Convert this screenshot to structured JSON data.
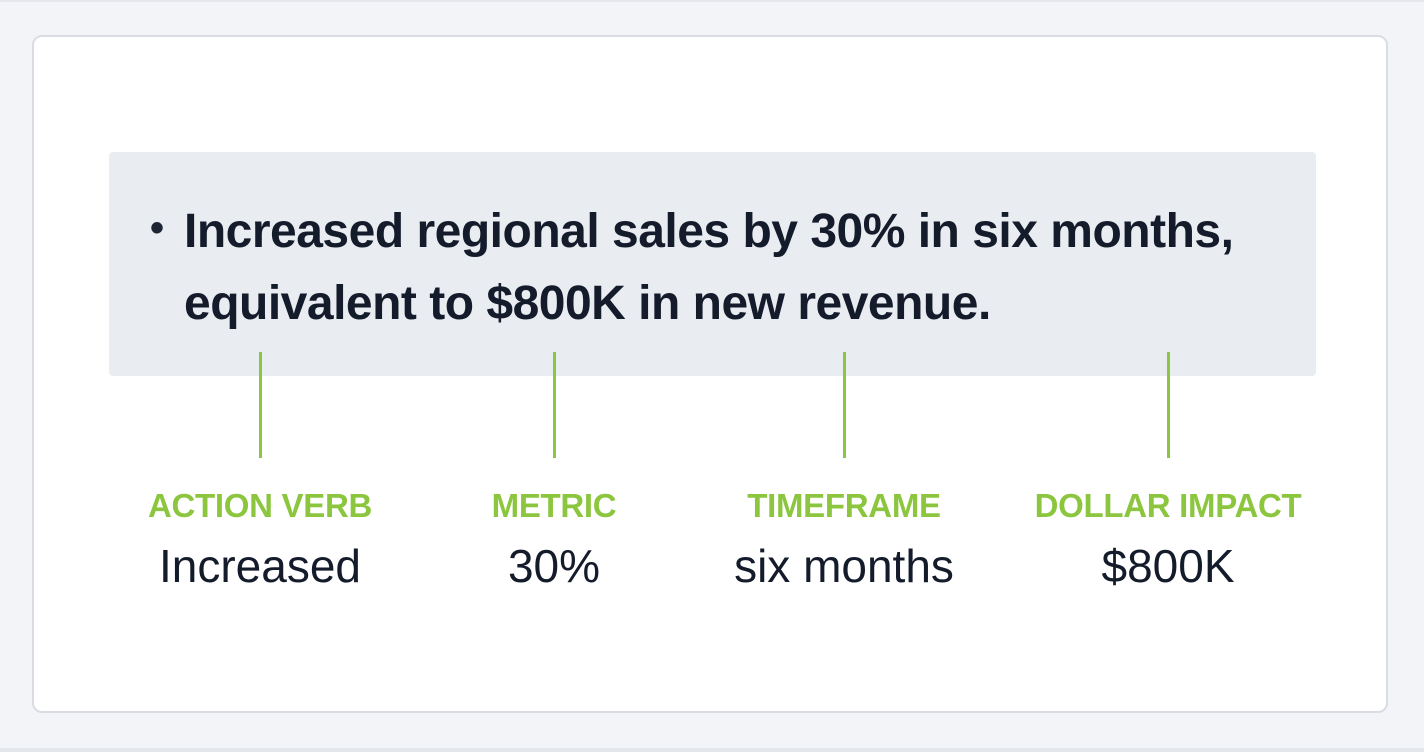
{
  "statement": {
    "bullet": "•",
    "lines": [
      "Increased regional sales by 30% in six months,",
      "equivalent to $800K in new revenue."
    ]
  },
  "components": [
    {
      "label": "ACTION VERB",
      "value": "Increased"
    },
    {
      "label": "METRIC",
      "value": "30%"
    },
    {
      "label": "TIMEFRAME",
      "value": "six months"
    },
    {
      "label": "DOLLAR IMPACT",
      "value": "$800K"
    }
  ],
  "colors": {
    "accent": "#8cc63f",
    "text": "#141b2b",
    "highlight_box": "#e9ecf0",
    "card_border": "#d9dde3"
  }
}
